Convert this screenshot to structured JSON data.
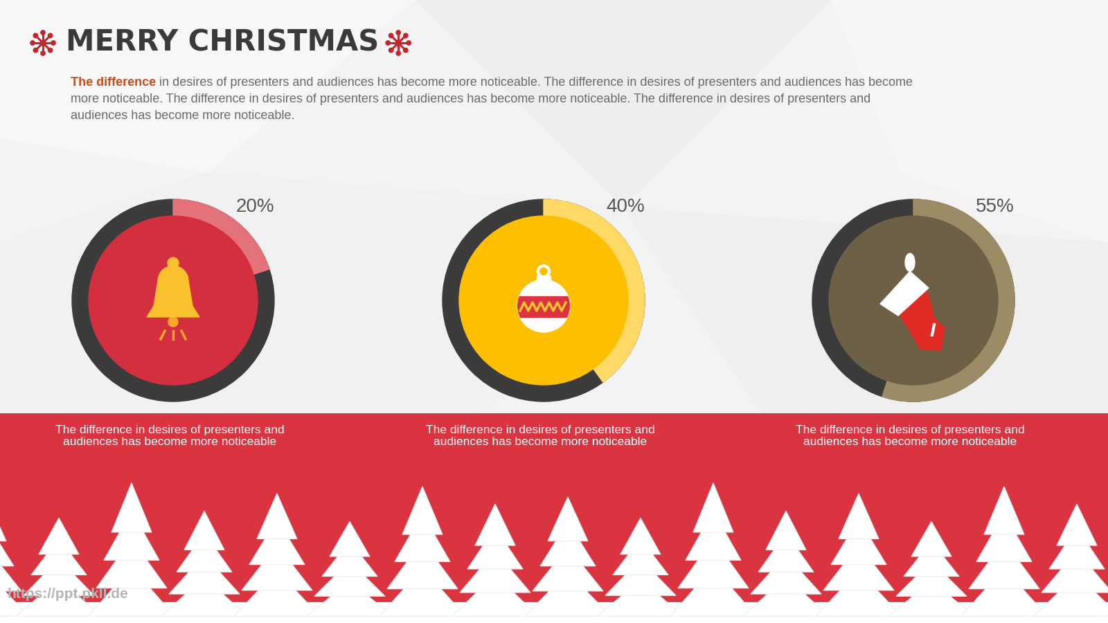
{
  "title": "MERRY CHRISTMAS",
  "intro": {
    "highlight": "The difference",
    "text": "in desires of presenters and audiences has become more noticeable. The difference in desires of presenters and audiences has become more noticeable. The difference in desires of presenters and audiences has become more noticeable. The difference in desires of presenters and audiences has become more noticeable."
  },
  "footer": "https://ppt.pkll.de",
  "chart_data": [
    {
      "type": "donut",
      "values": [
        20
      ],
      "value_labels": [
        "20%"
      ],
      "color": "#e3727a",
      "caption": "The difference in desires of presenters and audiences has become more noticeable"
    },
    {
      "type": "donut",
      "values": [
        40
      ],
      "value_labels": [
        "40%"
      ],
      "color": "#ffd966",
      "caption": "The difference in desires of presenters and audiences has become more noticeable"
    },
    {
      "type": "donut",
      "values": [
        55
      ],
      "value_labels": [
        "55%"
      ],
      "color": "#9c8c66",
      "caption": "The difference in desires of presenters and audiences has become more noticeable"
    }
  ]
}
